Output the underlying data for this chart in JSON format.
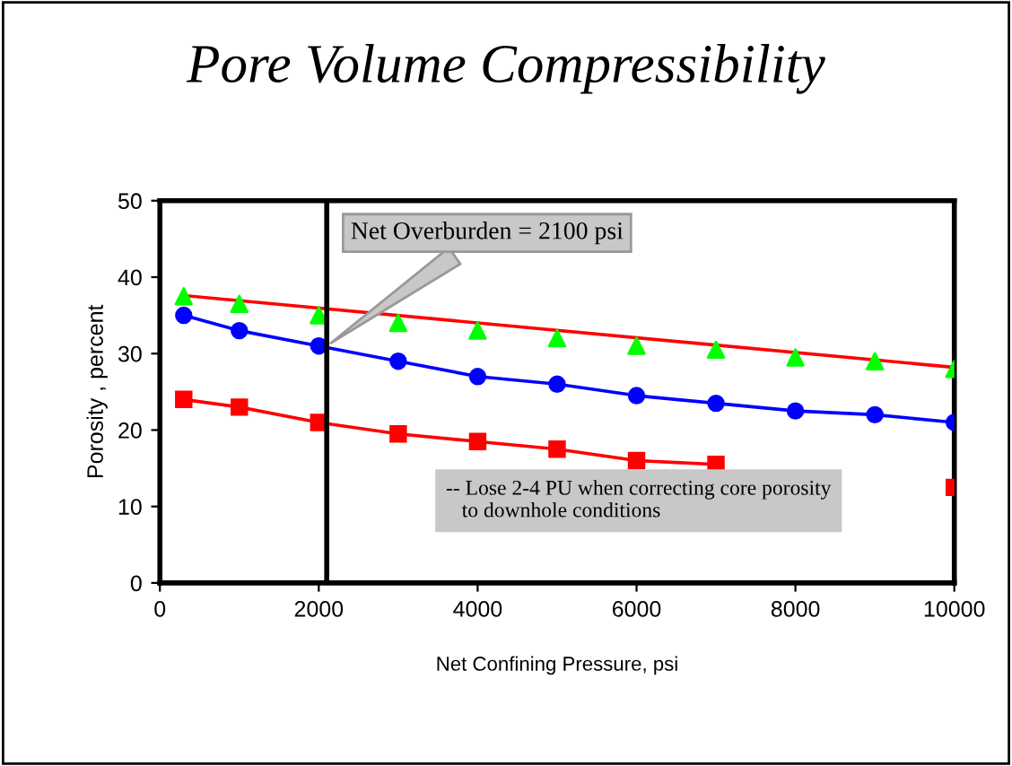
{
  "chart_data": {
    "type": "line",
    "title": "Pore Volume Compressibility",
    "xlabel": "Net Confining Pressure, psi",
    "ylabel": "Porosity , percent",
    "xlim": [
      0,
      10000
    ],
    "xticks": [
      0,
      2000,
      4000,
      6000,
      8000,
      10000
    ],
    "ylim": [
      0,
      50
    ],
    "yticks": [
      0,
      10,
      20,
      30,
      40,
      50
    ],
    "series": [
      {
        "color": "#ff0000",
        "marker": "none",
        "x": [
          300,
          10000
        ],
        "values": [
          37.6,
          28.2
        ]
      },
      {
        "type": "scatter",
        "color": "#00ff00",
        "marker": "triangle",
        "x": [
          300,
          1000,
          2000,
          3000,
          4000,
          5000,
          6000,
          7000,
          8000,
          9000,
          10000
        ],
        "values": [
          37.5,
          36.5,
          35,
          34,
          33,
          32,
          31,
          30.5,
          29.5,
          29,
          28
        ]
      },
      {
        "color": "#0000ff",
        "marker": "circle",
        "x": [
          300,
          1000,
          2000,
          3000,
          4000,
          5000,
          6000,
          7000,
          8000,
          9000,
          10000
        ],
        "values": [
          35,
          33,
          31,
          29,
          27,
          26,
          24.5,
          23.5,
          22.5,
          22,
          21
        ]
      },
      {
        "color": "#ff0000",
        "marker": "square",
        "x": [
          300,
          1000,
          2000,
          3000,
          4000,
          5000,
          6000,
          7000,
          8000,
          9000,
          10000
        ],
        "values": [
          24,
          23,
          21,
          19.5,
          18.5,
          17.5,
          16,
          15.5,
          null,
          null,
          12.5
        ]
      }
    ],
    "ref_lines": [
      {
        "axis": "x",
        "value": 2100,
        "label": "Net Overburden = 2100 psi",
        "color": "#000000"
      }
    ],
    "annotations": [
      "-- Lose 2-4 PU when correcting core porosity\n   to downhole conditions"
    ]
  }
}
